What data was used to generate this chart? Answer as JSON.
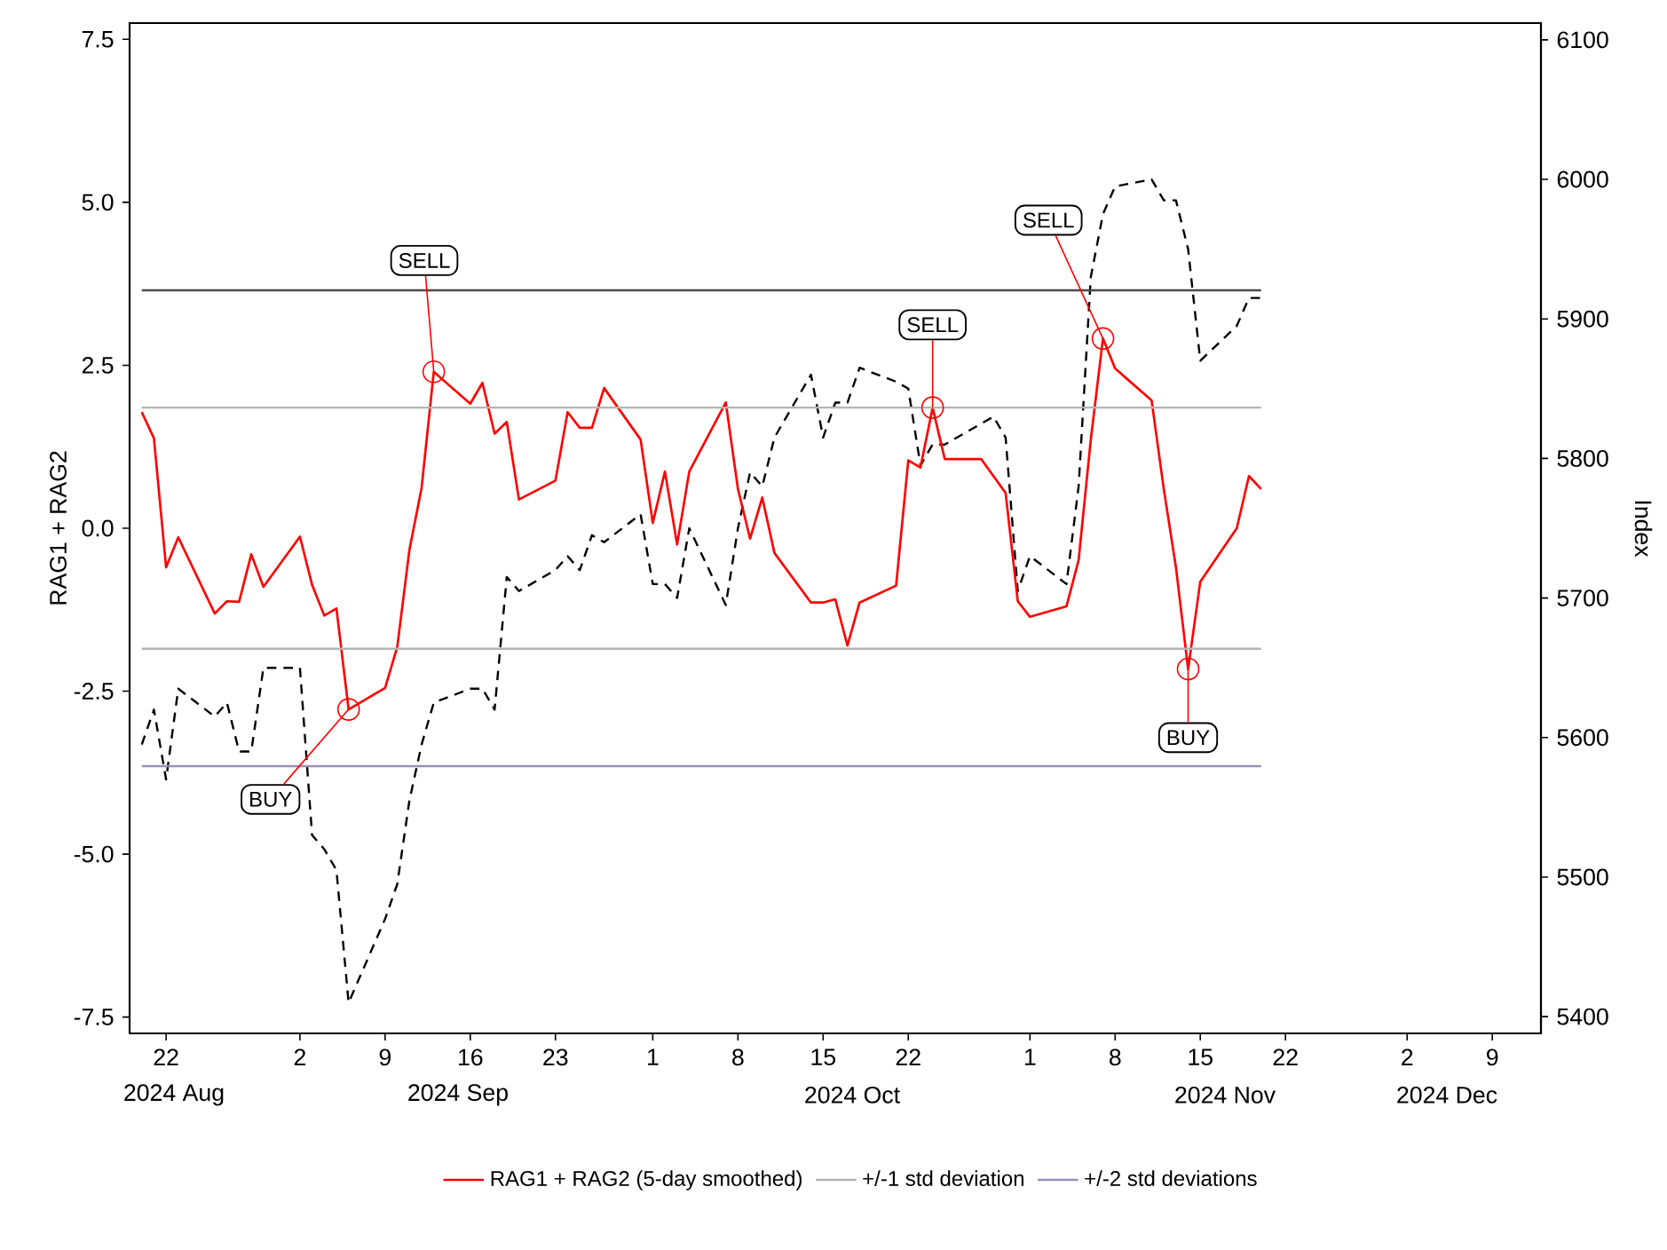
{
  "chart_data": {
    "type": "line",
    "ylabel": "RAG1 + RAG2",
    "y2label": "Index",
    "legend": "bottom",
    "x": [
      "2024-08-20",
      "2024-08-21",
      "2024-08-22",
      "2024-08-23",
      "2024-08-26",
      "2024-08-27",
      "2024-08-28",
      "2024-08-29",
      "2024-08-30",
      "2024-09-02",
      "2024-09-03",
      "2024-09-04",
      "2024-09-05",
      "2024-09-06",
      "2024-09-09",
      "2024-09-10",
      "2024-09-11",
      "2024-09-12",
      "2024-09-13",
      "2024-09-16",
      "2024-09-17",
      "2024-09-18",
      "2024-09-19",
      "2024-09-20",
      "2024-09-23",
      "2024-09-24",
      "2024-09-25",
      "2024-09-26",
      "2024-09-27",
      "2024-09-30",
      "2024-10-01",
      "2024-10-02",
      "2024-10-03",
      "2024-10-04",
      "2024-10-07",
      "2024-10-08",
      "2024-10-09",
      "2024-10-10",
      "2024-10-11",
      "2024-10-14",
      "2024-10-15",
      "2024-10-16",
      "2024-10-17",
      "2024-10-18",
      "2024-10-21",
      "2024-10-22",
      "2024-10-23",
      "2024-10-24",
      "2024-10-25",
      "2024-10-28",
      "2024-10-29",
      "2024-10-30",
      "2024-10-31",
      "2024-11-01",
      "2024-11-04",
      "2024-11-05",
      "2024-11-06",
      "2024-11-07",
      "2024-11-08",
      "2024-11-11",
      "2024-11-12",
      "2024-11-13",
      "2024-11-14",
      "2024-11-15",
      "2024-11-18",
      "2024-11-19",
      "2024-11-20"
    ],
    "series": [
      {
        "name": "RAG1 + RAG2 (5-day smoothed)",
        "color": "#ff0000",
        "line_style": "solid",
        "values": [
          1.78,
          1.38,
          -0.6,
          -0.14,
          -1.31,
          -1.12,
          -1.13,
          -0.4,
          -0.9,
          -0.13,
          -0.87,
          -1.34,
          -1.23,
          -2.78,
          -2.45,
          -1.82,
          -0.33,
          0.62,
          2.4,
          1.91,
          2.23,
          1.45,
          1.63,
          0.44,
          0.73,
          1.78,
          1.54,
          1.54,
          2.15,
          1.36,
          0.08,
          0.87,
          -0.25,
          0.87,
          1.93,
          0.6,
          -0.16,
          0.47,
          -0.38,
          -1.14,
          -1.14,
          -1.09,
          -1.8,
          -1.14,
          -0.88,
          1.04,
          0.93,
          1.85,
          1.06,
          1.06,
          0.8,
          0.54,
          -1.12,
          -1.36,
          -1.2,
          -0.49,
          1.36,
          2.91,
          2.45,
          1.96,
          0.6,
          -0.6,
          -2.16,
          -0.82,
          0.0,
          0.8,
          0.6
        ]
      },
      {
        "color": "#000000",
        "axis": "y2",
        "line_style": "dashed",
        "values": [
          5595,
          5620,
          5570,
          5635,
          5615,
          5625,
          5590,
          5590,
          5650,
          5650,
          5530,
          5520,
          5505,
          5410,
          5470,
          5495,
          5555,
          5595,
          5625,
          5635,
          5635,
          5620,
          5715,
          5705,
          5720,
          5730,
          5720,
          5745,
          5740,
          5760,
          5710,
          5710,
          5700,
          5750,
          5695,
          5750,
          5790,
          5780,
          5815,
          5860,
          5815,
          5840,
          5840,
          5865,
          5855,
          5850,
          5795,
          5810,
          5810,
          5825,
          5830,
          5815,
          5705,
          5730,
          5710,
          5780,
          5930,
          5975,
          5995,
          6000,
          5985,
          5985,
          5950,
          5870,
          5895,
          5915,
          5915
        ]
      },
      {
        "name": "+/-1 std deviation",
        "color": "#b4b4b4",
        "line_style": "solid",
        "x": [
          "2024-08-20",
          "2024-11-20"
        ],
        "values": [
          1.85,
          1.85
        ]
      },
      {
        "color": "#b4b4b4",
        "line_style": "solid",
        "x": [
          "2024-08-20",
          "2024-11-20"
        ],
        "values": [
          -1.85,
          -1.85
        ]
      },
      {
        "color": "#4a4a4a",
        "line_style": "solid",
        "x": [
          "2024-08-20",
          "2024-11-20"
        ],
        "values": [
          3.65,
          3.65
        ]
      },
      {
        "name": "+/-2 std deviations",
        "color": "#9c8fb8",
        "line_style": "solid",
        "x": [
          "2024-08-20",
          "2024-11-20"
        ],
        "values": [
          -3.65,
          -3.65
        ]
      }
    ],
    "annotations": [
      {
        "text": "BUY",
        "x": "2024-09-06",
        "y": -2.78
      },
      {
        "text": "SELL",
        "x": "2024-09-13",
        "y": 2.4
      },
      {
        "text": "SELL",
        "x": "2024-10-24",
        "y": 1.85
      },
      {
        "text": "SELL",
        "x": "2024-11-07",
        "y": 2.91
      },
      {
        "text": "BUY",
        "x": "2024-11-14",
        "y": -2.16
      },
      "2024 Aug",
      "2024 Sep",
      "2024 Oct",
      "2024 Nov",
      "2024 Dec"
    ],
    "xlim": [
      "2024-08-19",
      "2024-12-13"
    ],
    "xticks": [
      {
        "value": "2024-08-22",
        "label": "22"
      },
      {
        "value": "2024-09-02",
        "label": "2"
      },
      {
        "value": "2024-09-09",
        "label": "9"
      },
      {
        "value": "2024-09-16",
        "label": "16"
      },
      {
        "value": "2024-09-23",
        "label": "23"
      },
      {
        "value": "2024-10-01",
        "label": "1"
      },
      {
        "value": "2024-10-08",
        "label": "8"
      },
      {
        "value": "2024-10-15",
        "label": "15"
      },
      {
        "value": "2024-10-22",
        "label": "22"
      },
      {
        "value": "2024-11-01",
        "label": "1"
      },
      {
        "value": "2024-11-08",
        "label": "8"
      },
      {
        "value": "2024-11-15",
        "label": "15"
      },
      {
        "value": "2024-11-22",
        "label": "22"
      },
      {
        "value": "2024-12-02",
        "label": "2"
      },
      {
        "value": "2024-12-09",
        "label": "9"
      }
    ],
    "ylim": [
      -7.75,
      7.75
    ],
    "yticks": [
      {
        "value": -7.5,
        "label": "-7.5"
      },
      {
        "value": -5,
        "label": "-5.0"
      },
      {
        "value": -2.5,
        "label": "-2.5"
      },
      {
        "value": 0,
        "label": "0.0"
      },
      {
        "value": 2.5,
        "label": "2.5"
      },
      {
        "value": 5,
        "label": "5.0"
      },
      {
        "value": 7.5,
        "label": "7.5"
      }
    ],
    "y2lim": [
      5388,
      6112
    ],
    "y2ticks": [
      5400,
      5500,
      5600,
      5700,
      5800,
      5900,
      6000,
      6100
    ]
  }
}
